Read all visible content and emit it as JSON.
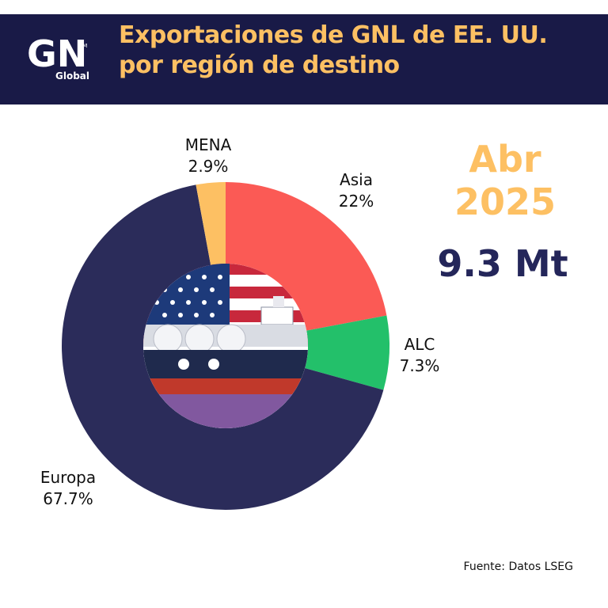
{
  "header": {
    "title_line1": "Exportaciones de GNL de EE. UU.",
    "title_line2": "por región de destino"
  },
  "logo": {
    "mark": "GN",
    "sub": "Global",
    "tm": "TM"
  },
  "period": {
    "month": "Abr",
    "year": "2025"
  },
  "total_label": "9.3 Mt",
  "source": "Fuente: Datos LSEG",
  "colors": {
    "banner": "#191a47",
    "accent": "#fdc063",
    "total_text": "#24265a"
  },
  "chart_data": {
    "type": "pie",
    "style": "donut",
    "center_image": "lng-tanker-with-us-flag",
    "slices": [
      {
        "label": "Asia",
        "value": 22,
        "display": "22%",
        "color": "#fb5a55"
      },
      {
        "label": "ALC",
        "value": 7.3,
        "display": "7.3%",
        "color": "#23c06a"
      },
      {
        "label": "Europa",
        "value": 67.7,
        "display": "67.7%",
        "color": "#2b2c5a"
      },
      {
        "label": "MENA",
        "value": 2.9,
        "display": "2.9%",
        "color": "#fdc063"
      }
    ]
  }
}
